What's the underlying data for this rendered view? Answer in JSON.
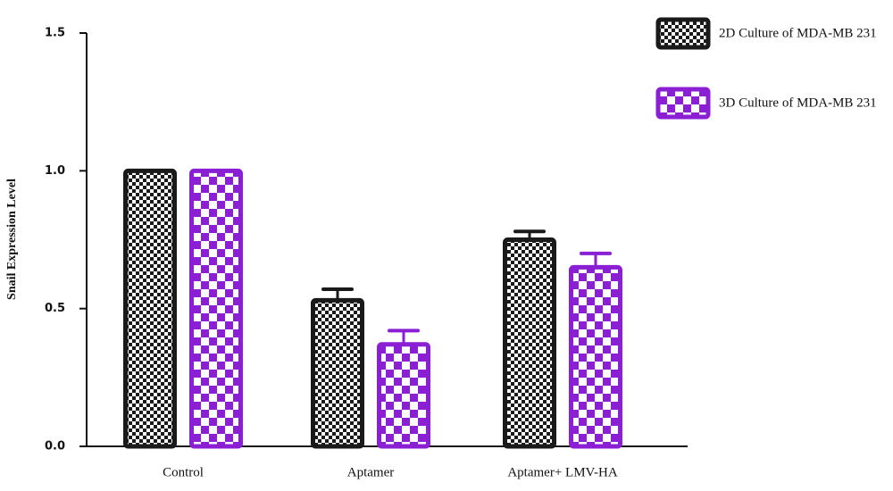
{
  "chart_data": {
    "type": "bar",
    "ylabel": "Snail Expression Level",
    "categories": [
      "Control",
      "Aptamer",
      "Aptamer+ LMV-HA"
    ],
    "series": [
      {
        "name": "2D Culture of MDA-MB 231",
        "color": "#1a1a1a",
        "values": [
          1.0,
          0.53,
          0.75
        ],
        "errors": [
          0,
          0.04,
          0.03
        ]
      },
      {
        "name": "3D Culture of MDA-MB 231",
        "color": "#8a1fd4",
        "values": [
          1.0,
          0.37,
          0.65
        ],
        "errors": [
          0,
          0.05,
          0.05
        ]
      }
    ],
    "ylim": [
      0,
      1.5
    ],
    "yticks": [
      {
        "value": 0,
        "label": "0.0"
      },
      {
        "value": 0.5,
        "label": "0.5"
      },
      {
        "value": 1.0,
        "label": "1.0"
      },
      {
        "value": 1.5,
        "label": "1.5"
      }
    ],
    "legend": "top-right"
  }
}
